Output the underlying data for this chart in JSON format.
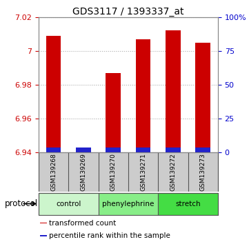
{
  "title": "GDS3117 / 1393337_at",
  "samples": [
    "GSM139268",
    "GSM139269",
    "GSM139270",
    "GSM139271",
    "GSM139272",
    "GSM139273"
  ],
  "red_values": [
    7.009,
    6.942,
    6.987,
    7.007,
    7.012,
    7.005
  ],
  "red_base": 6.94,
  "ylim_min": 6.94,
  "ylim_max": 7.02,
  "yticks_left": [
    6.94,
    6.96,
    6.98,
    7.0,
    7.02
  ],
  "ytick_labels_left": [
    "6.94",
    "6.96",
    "6.98",
    "7",
    "7.02"
  ],
  "yticks_right": [
    0,
    25,
    50,
    75,
    100
  ],
  "ytick_labels_right": [
    "0",
    "25",
    "50",
    "75",
    "100%"
  ],
  "groups": [
    {
      "label": "control",
      "indices": [
        0,
        1
      ],
      "color": "#ccf5cc"
    },
    {
      "label": "phenylephrine",
      "indices": [
        2,
        3
      ],
      "color": "#88ee88"
    },
    {
      "label": "stretch",
      "indices": [
        4,
        5
      ],
      "color": "#44dd44"
    }
  ],
  "protocol_label": "protocol",
  "legend_items": [
    {
      "label": "transformed count",
      "color": "#cc0000"
    },
    {
      "label": "percentile rank within the sample",
      "color": "#2222cc"
    }
  ],
  "bar_width": 0.5,
  "red_color": "#cc0000",
  "blue_color": "#2222cc",
  "blue_bar_height": 0.003,
  "grid_color": "#888888",
  "bg_color": "#ffffff",
  "sample_bg": "#cccccc",
  "figsize": [
    3.61,
    3.54
  ],
  "dpi": 100
}
